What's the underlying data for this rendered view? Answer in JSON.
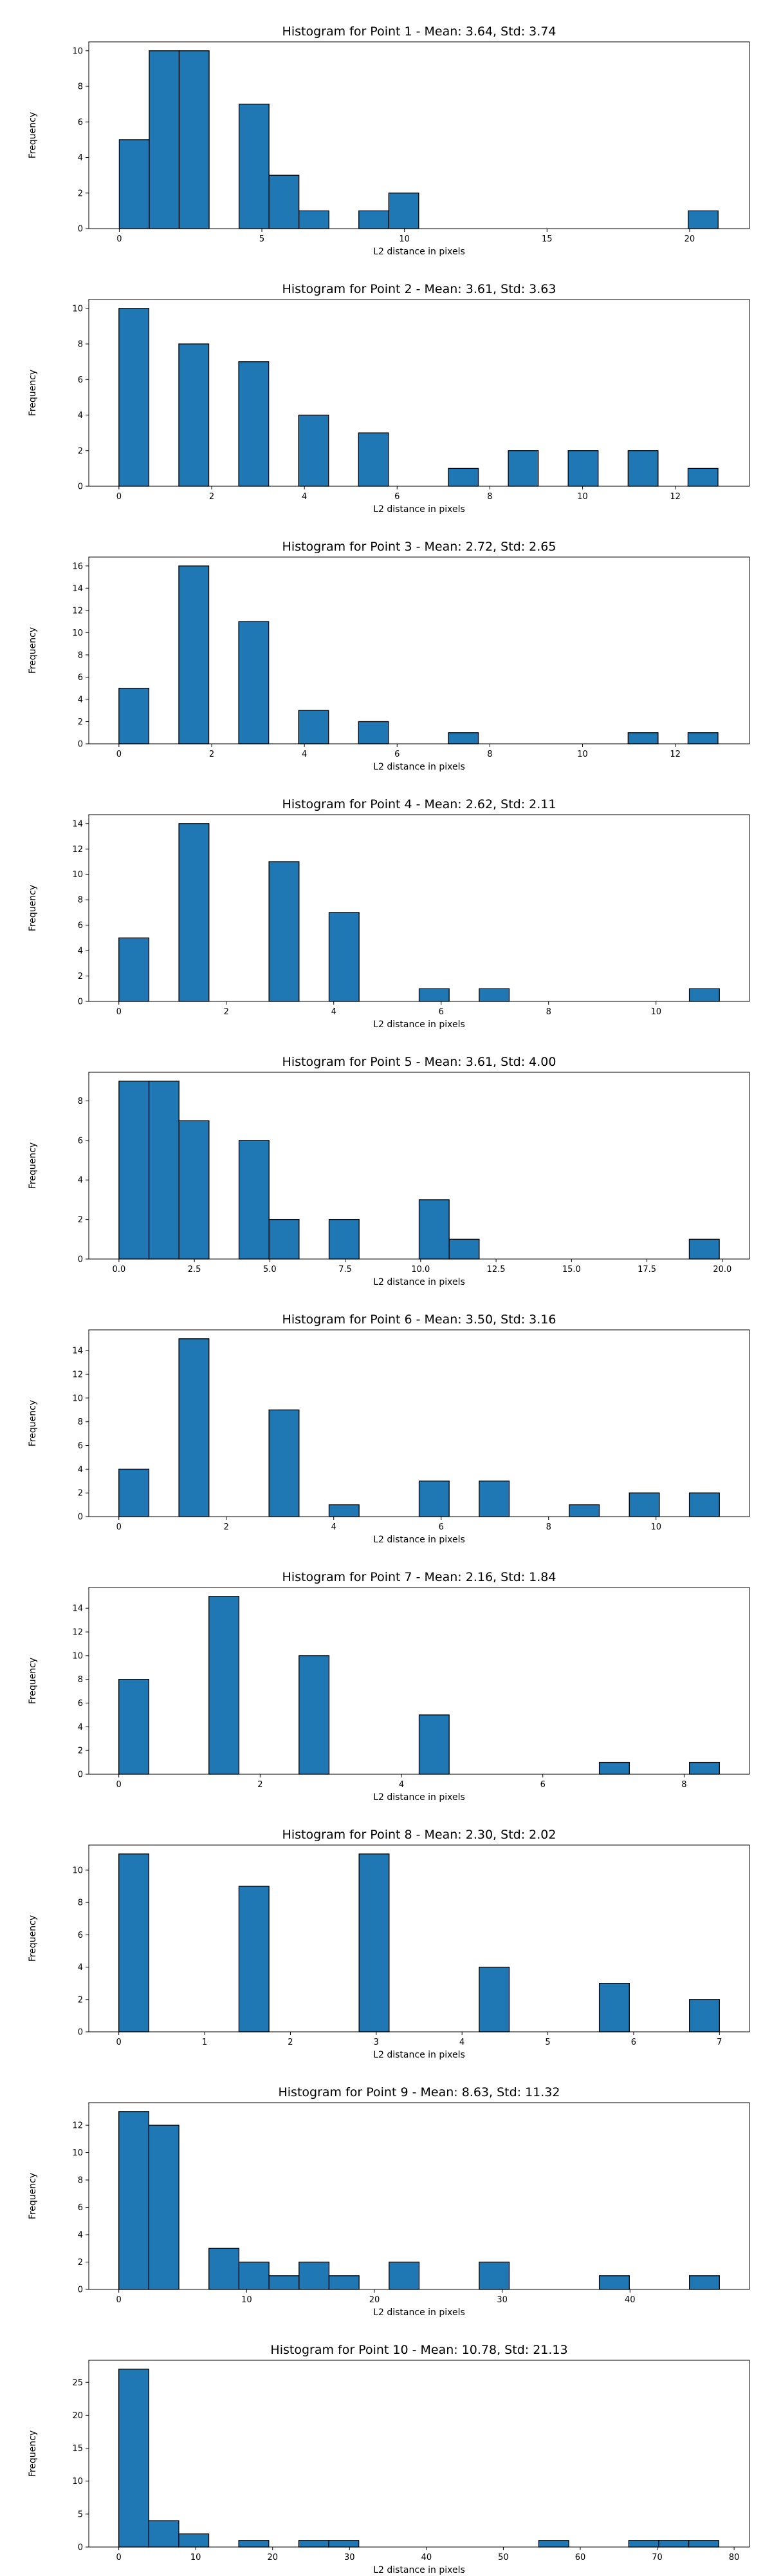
{
  "figure": {
    "bar_color": "#1f77b4",
    "edge_color": "#000000"
  },
  "chart_data": [
    {
      "type": "bar",
      "title": "Histogram for Point 1 - Mean: 3.64, Std: 3.74",
      "xlabel": "L2 distance in pixels",
      "ylabel": "Frequency",
      "xlim": [
        -1.07,
        22.1
      ],
      "ylim": [
        0,
        10.5
      ],
      "xticks": [
        0,
        5,
        10,
        15,
        20
      ],
      "xtick_labels": [
        "0",
        "5",
        "10",
        "15",
        "20"
      ],
      "yticks": [
        0,
        2,
        4,
        6,
        8,
        10
      ],
      "ytick_labels": [
        "0",
        "2",
        "4",
        "6",
        "8",
        "10"
      ],
      "grid": false,
      "bin_edges": [
        0.0,
        1.05,
        2.1,
        3.15,
        4.2,
        5.25,
        6.3,
        7.35,
        8.4,
        9.45,
        10.5,
        11.55,
        12.6,
        13.65,
        14.7,
        15.75,
        16.8,
        17.85,
        18.9,
        19.95,
        21.0
      ],
      "counts": [
        5,
        10,
        10,
        0,
        7,
        3,
        1,
        0,
        1,
        2,
        0,
        0,
        0,
        0,
        0,
        0,
        0,
        0,
        0,
        1
      ]
    },
    {
      "type": "bar",
      "title": "Histogram for Point 2 - Mean: 3.61, Std: 3.63",
      "xlabel": "L2 distance in pixels",
      "ylabel": "Frequency",
      "xlim": [
        -0.65,
        13.6
      ],
      "ylim": [
        0,
        10.5
      ],
      "xticks": [
        0,
        2,
        4,
        6,
        8,
        10,
        12
      ],
      "xtick_labels": [
        "0",
        "2",
        "4",
        "6",
        "8",
        "10",
        "12"
      ],
      "yticks": [
        0,
        2,
        4,
        6,
        8,
        10
      ],
      "ytick_labels": [
        "0",
        "2",
        "4",
        "6",
        "8",
        "10"
      ],
      "grid": false,
      "bin_edges": [
        0.0,
        0.646,
        1.292,
        1.938,
        2.584,
        3.23,
        3.876,
        4.522,
        5.168,
        5.814,
        6.46,
        7.106,
        7.752,
        8.398,
        9.044,
        9.69,
        10.336,
        10.982,
        11.628,
        12.274,
        12.92
      ],
      "counts": [
        10,
        0,
        8,
        0,
        7,
        0,
        4,
        0,
        3,
        0,
        0,
        1,
        0,
        2,
        0,
        2,
        0,
        2,
        0,
        1
      ]
    },
    {
      "type": "bar",
      "title": "Histogram for Point 3 - Mean: 2.72, Std: 2.65",
      "xlabel": "L2 distance in pixels",
      "ylabel": "Frequency",
      "xlim": [
        -0.65,
        13.6
      ],
      "ylim": [
        0,
        16.8
      ],
      "xticks": [
        0,
        2,
        4,
        6,
        8,
        10,
        12
      ],
      "xtick_labels": [
        "0",
        "2",
        "4",
        "6",
        "8",
        "10",
        "12"
      ],
      "yticks": [
        0,
        2,
        4,
        6,
        8,
        10,
        12,
        14,
        16
      ],
      "ytick_labels": [
        "0",
        "2",
        "4",
        "6",
        "8",
        "10",
        "12",
        "14",
        "16"
      ],
      "grid": false,
      "bin_edges": [
        0.0,
        0.646,
        1.292,
        1.938,
        2.584,
        3.23,
        3.876,
        4.522,
        5.168,
        5.814,
        6.46,
        7.106,
        7.752,
        8.398,
        9.044,
        9.69,
        10.336,
        10.982,
        11.628,
        12.274,
        12.92
      ],
      "counts": [
        5,
        0,
        16,
        0,
        11,
        0,
        3,
        0,
        2,
        0,
        0,
        1,
        0,
        0,
        0,
        0,
        0,
        1,
        0,
        1
      ]
    },
    {
      "type": "bar",
      "title": "Histogram for Point 4 - Mean: 2.62, Std: 2.11",
      "xlabel": "L2 distance in pixels",
      "ylabel": "Frequency",
      "xlim": [
        -0.56,
        11.74
      ],
      "ylim": [
        0,
        14.7
      ],
      "xticks": [
        0,
        2,
        4,
        6,
        8,
        10
      ],
      "xtick_labels": [
        "0",
        "2",
        "4",
        "6",
        "8",
        "10"
      ],
      "yticks": [
        0,
        2,
        4,
        6,
        8,
        10,
        12,
        14
      ],
      "ytick_labels": [
        "0",
        "2",
        "4",
        "6",
        "8",
        "10",
        "12",
        "14"
      ],
      "grid": false,
      "bin_edges": [
        0.0,
        0.559,
        1.118,
        1.677,
        2.236,
        2.795,
        3.354,
        3.913,
        4.472,
        5.031,
        5.59,
        6.149,
        6.708,
        7.267,
        7.826,
        8.385,
        8.944,
        9.503,
        10.062,
        10.621,
        11.18
      ],
      "counts": [
        5,
        0,
        14,
        0,
        0,
        11,
        0,
        7,
        0,
        0,
        1,
        0,
        1,
        0,
        0,
        0,
        0,
        0,
        0,
        1
      ]
    },
    {
      "type": "bar",
      "title": "Histogram for Point 5 - Mean: 3.61, Std: 4.00",
      "xlabel": "L2 distance in pixels",
      "ylabel": "Frequency",
      "xlim": [
        -1.0,
        20.9
      ],
      "ylim": [
        0,
        9.45
      ],
      "xticks": [
        0.0,
        2.5,
        5.0,
        7.5,
        10.0,
        12.5,
        15.0,
        17.5,
        20.0
      ],
      "xtick_labels": [
        "0.0",
        "2.5",
        "5.0",
        "7.5",
        "10.0",
        "12.5",
        "15.0",
        "17.5",
        "20.0"
      ],
      "yticks": [
        0,
        2,
        4,
        6,
        8
      ],
      "ytick_labels": [
        "0",
        "2",
        "4",
        "6",
        "8"
      ],
      "grid": false,
      "bin_edges": [
        0.0,
        0.995,
        1.99,
        2.985,
        3.98,
        4.975,
        5.97,
        6.965,
        7.96,
        8.955,
        9.95,
        10.945,
        11.94,
        12.935,
        13.93,
        14.925,
        15.92,
        16.915,
        17.91,
        18.905,
        19.9
      ],
      "counts": [
        9,
        9,
        7,
        0,
        6,
        2,
        0,
        2,
        0,
        0,
        3,
        1,
        0,
        0,
        0,
        0,
        0,
        0,
        0,
        1
      ]
    },
    {
      "type": "bar",
      "title": "Histogram for Point 6 - Mean: 3.50, Std: 3.16",
      "xlabel": "L2 distance in pixels",
      "ylabel": "Frequency",
      "xlim": [
        -0.56,
        11.74
      ],
      "ylim": [
        0,
        15.75
      ],
      "xticks": [
        0,
        2,
        4,
        6,
        8,
        10
      ],
      "xtick_labels": [
        "0",
        "2",
        "4",
        "6",
        "8",
        "10"
      ],
      "yticks": [
        0,
        2,
        4,
        6,
        8,
        10,
        12,
        14
      ],
      "ytick_labels": [
        "0",
        "2",
        "4",
        "6",
        "8",
        "10",
        "12",
        "14"
      ],
      "grid": false,
      "bin_edges": [
        0.0,
        0.559,
        1.118,
        1.677,
        2.236,
        2.795,
        3.354,
        3.913,
        4.472,
        5.031,
        5.59,
        6.149,
        6.708,
        7.267,
        7.826,
        8.385,
        8.944,
        9.503,
        10.062,
        10.621,
        11.18
      ],
      "counts": [
        4,
        0,
        15,
        0,
        0,
        9,
        0,
        1,
        0,
        0,
        3,
        0,
        3,
        0,
        0,
        1,
        0,
        2,
        0,
        2
      ]
    },
    {
      "type": "bar",
      "title": "Histogram for Point 7 - Mean: 2.16, Std: 1.84",
      "xlabel": "L2 distance in pixels",
      "ylabel": "Frequency",
      "xlim": [
        -0.425,
        8.925
      ],
      "ylim": [
        0,
        15.75
      ],
      "xticks": [
        0,
        2,
        4,
        6,
        8
      ],
      "xtick_labels": [
        "0",
        "2",
        "4",
        "6",
        "8"
      ],
      "yticks": [
        0,
        2,
        4,
        6,
        8,
        10,
        12,
        14
      ],
      "ytick_labels": [
        "0",
        "2",
        "4",
        "6",
        "8",
        "10",
        "12",
        "14"
      ],
      "grid": false,
      "bin_edges": [
        0.0,
        0.425,
        0.85,
        1.275,
        1.7,
        2.125,
        2.55,
        2.975,
        3.4,
        3.825,
        4.25,
        4.675,
        5.1,
        5.525,
        5.95,
        6.375,
        6.8,
        7.225,
        7.65,
        8.075,
        8.5
      ],
      "counts": [
        8,
        0,
        0,
        15,
        0,
        0,
        10,
        0,
        0,
        0,
        5,
        0,
        0,
        0,
        0,
        0,
        1,
        0,
        0,
        1
      ]
    },
    {
      "type": "bar",
      "title": "Histogram for Point 8 - Mean: 2.30, Std: 2.02",
      "xlabel": "L2 distance in pixels",
      "ylabel": "Frequency",
      "xlim": [
        -0.35,
        7.35
      ],
      "ylim": [
        0,
        11.55
      ],
      "xticks": [
        0,
        1,
        2,
        3,
        4,
        5,
        6,
        7
      ],
      "xtick_labels": [
        "0",
        "1",
        "2",
        "3",
        "4",
        "5",
        "6",
        "7"
      ],
      "yticks": [
        0,
        2,
        4,
        6,
        8,
        10
      ],
      "ytick_labels": [
        "0",
        "2",
        "4",
        "6",
        "8",
        "10"
      ],
      "grid": false,
      "bin_edges": [
        0.0,
        0.35,
        0.7,
        1.05,
        1.4,
        1.75,
        2.1,
        2.45,
        2.8,
        3.15,
        3.5,
        3.85,
        4.2,
        4.55,
        4.9,
        5.25,
        5.6,
        5.95,
        6.3,
        6.65,
        7.0
      ],
      "counts": [
        11,
        0,
        0,
        0,
        9,
        0,
        0,
        0,
        11,
        0,
        0,
        0,
        4,
        0,
        0,
        0,
        3,
        0,
        0,
        2
      ]
    },
    {
      "type": "bar",
      "title": "Histogram for Point 9 - Mean: 8.63, Std: 11.32",
      "xlabel": "L2 distance in pixels",
      "ylabel": "Frequency",
      "xlim": [
        -2.35,
        49.35
      ],
      "ylim": [
        0,
        13.65
      ],
      "xticks": [
        0,
        10,
        20,
        30,
        40
      ],
      "xtick_labels": [
        "0",
        "10",
        "20",
        "30",
        "40"
      ],
      "yticks": [
        0,
        2,
        4,
        6,
        8,
        10,
        12
      ],
      "ytick_labels": [
        "0",
        "2",
        "4",
        "6",
        "8",
        "10",
        "12"
      ],
      "grid": false,
      "bin_edges": [
        0.0,
        2.35,
        4.7,
        7.05,
        9.4,
        11.75,
        14.1,
        16.45,
        18.8,
        21.15,
        23.5,
        25.85,
        28.2,
        30.55,
        32.9,
        35.25,
        37.6,
        39.95,
        42.3,
        44.65,
        47.0
      ],
      "counts": [
        13,
        12,
        0,
        3,
        2,
        1,
        2,
        1,
        0,
        2,
        0,
        0,
        2,
        0,
        0,
        0,
        1,
        0,
        0,
        1
      ]
    },
    {
      "type": "bar",
      "title": "Histogram for Point 10 - Mean: 10.78, Std: 21.13",
      "xlabel": "L2 distance in pixels",
      "ylabel": "Frequency",
      "xlim": [
        -3.9,
        82.0
      ],
      "ylim": [
        0,
        28.35
      ],
      "xticks": [
        0,
        10,
        20,
        30,
        40,
        50,
        60,
        70,
        80
      ],
      "xtick_labels": [
        "0",
        "10",
        "20",
        "30",
        "40",
        "50",
        "60",
        "70",
        "80"
      ],
      "yticks": [
        0,
        5,
        10,
        15,
        20,
        25
      ],
      "ytick_labels": [
        "0",
        "5",
        "10",
        "15",
        "20",
        "25"
      ],
      "grid": false,
      "bin_edges": [
        0.0,
        3.9,
        7.8,
        11.7,
        15.6,
        19.5,
        23.4,
        27.3,
        31.2,
        35.1,
        39.0,
        42.9,
        46.8,
        50.7,
        54.6,
        58.5,
        62.4,
        66.3,
        70.2,
        74.1,
        78.0
      ],
      "counts": [
        27,
        4,
        2,
        0,
        1,
        0,
        1,
        1,
        0,
        0,
        0,
        0,
        0,
        0,
        1,
        0,
        0,
        1,
        1,
        1
      ]
    }
  ]
}
